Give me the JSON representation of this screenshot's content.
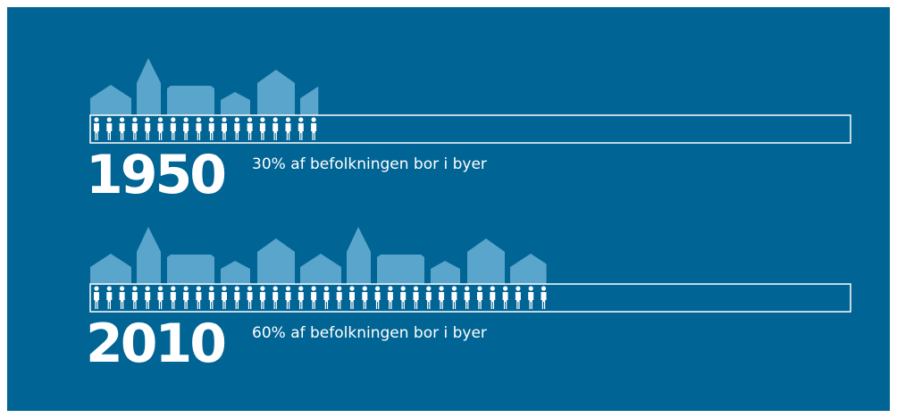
{
  "chart_data": {
    "type": "pictograph",
    "categories": [
      "1950",
      "2010"
    ],
    "values": [
      30,
      60
    ],
    "value_labels": [
      "30% af befolkningen bor i byer",
      "60% af befolkningen bor i byer"
    ],
    "xlim": [
      0,
      100
    ],
    "color": "#ffffff",
    "house_color": "#5aa5cc",
    "background": "#006494"
  }
}
